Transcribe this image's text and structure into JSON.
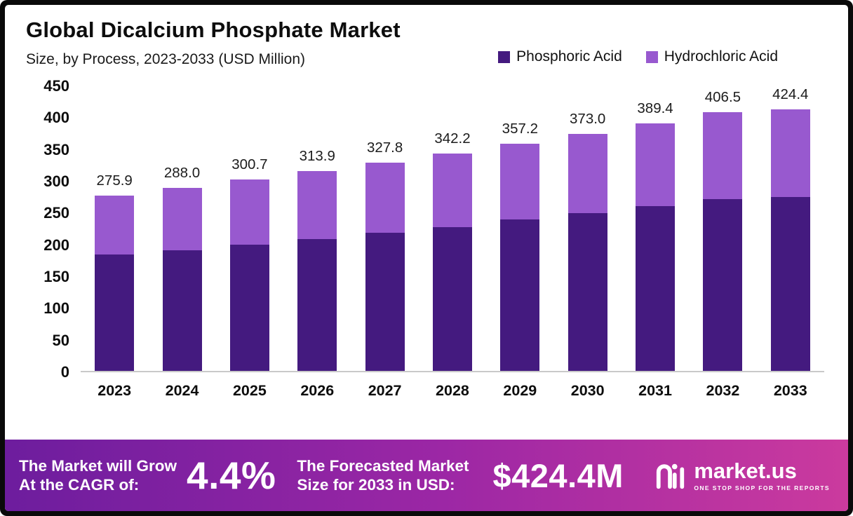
{
  "header": {
    "title": "Global Dicalcium Phosphate Market",
    "subtitle": "Size, by Process, 2023-2033 (USD Million)"
  },
  "legend": [
    {
      "label": "Phosphoric Acid",
      "color": "#441a7f"
    },
    {
      "label": "Hydrochloric Acid",
      "color": "#9859cf"
    }
  ],
  "chart_data": {
    "type": "bar",
    "stacked": true,
    "title": "Global Dicalcium Phosphate Market Size, by Process, 2023-2033 (USD Million)",
    "categories": [
      "2023",
      "2024",
      "2025",
      "2026",
      "2027",
      "2028",
      "2029",
      "2030",
      "2031",
      "2032",
      "2033"
    ],
    "series": [
      {
        "name": "Phosphoric Acid",
        "color": "#441a7f",
        "values": [
          183,
          190,
          199,
          207,
          217,
          226,
          238,
          248,
          259,
          270,
          282
        ]
      },
      {
        "name": "Hydrochloric Acid",
        "color": "#9859cf",
        "values": [
          92.9,
          98.0,
          101.7,
          106.9,
          110.8,
          116.2,
          119.2,
          125.0,
          130.4,
          136.5,
          142.4
        ]
      }
    ],
    "totals": [
      "275.9",
      "288.0",
      "300.7",
      "313.9",
      "327.8",
      "342.2",
      "357.2",
      "373.0",
      "389.4",
      "406.5",
      "424.4"
    ],
    "ylim": [
      0,
      450
    ],
    "yticks": [
      "450",
      "400",
      "350",
      "300",
      "250",
      "200",
      "150",
      "100",
      "50",
      "0"
    ],
    "grid": false,
    "legend_position": "top-right"
  },
  "banner": {
    "cagr_label_line1": "The Market will Grow",
    "cagr_label_line2": "At the CAGR of:",
    "cagr_value": "4.4%",
    "forecast_label_line1": "The Forecasted Market",
    "forecast_label_line2": "Size for 2033 in USD:",
    "forecast_value": "$424.4M",
    "brand": "market.us",
    "brand_tagline": "ONE STOP SHOP FOR THE REPORTS"
  },
  "colors": {
    "phosphoric": "#441a7f",
    "hydrochloric": "#9859cf",
    "banner_gradient_start": "#6d1d9e",
    "banner_gradient_end": "#cb3a9e",
    "axis_line": "#c9c9c9"
  }
}
